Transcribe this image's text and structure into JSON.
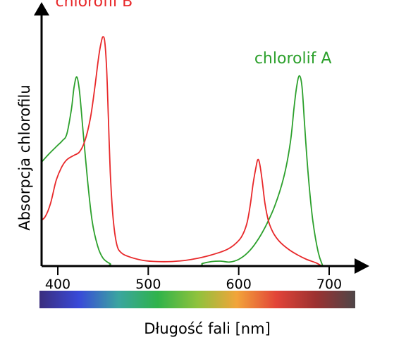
{
  "chart_data": {
    "type": "line",
    "xlabel": "Długość fali [nm]",
    "ylabel": "Absorpcja chlorofilu",
    "x_ticks": [
      400,
      500,
      600,
      700
    ],
    "xlim": [
      380,
      720
    ],
    "ylim": [
      0,
      1
    ],
    "grid": false,
    "spectrum_bar_colors": [
      "#3a2e7e",
      "#3949d8",
      "#3aa5a0",
      "#2fb34a",
      "#8fc23c",
      "#f2a43a",
      "#e24438",
      "#9c3131",
      "#4e4648"
    ],
    "series": [
      {
        "name": "chlorolif A",
        "color": "#2ca02c",
        "label_at": [
          660,
          0.905
        ],
        "points": [
          [
            380,
            0.455
          ],
          [
            390,
            0.5
          ],
          [
            400,
            0.54
          ],
          [
            405,
            0.56
          ],
          [
            410,
            0.59
          ],
          [
            415,
            0.7
          ],
          [
            418,
            0.8
          ],
          [
            421,
            0.845
          ],
          [
            424,
            0.78
          ],
          [
            428,
            0.6
          ],
          [
            433,
            0.38
          ],
          [
            438,
            0.2
          ],
          [
            444,
            0.09
          ],
          [
            450,
            0.035
          ],
          [
            458,
            0.01
          ],
          [
            465,
            0.0
          ],
          [
            550,
            0.0
          ],
          [
            560,
            0.012
          ],
          [
            570,
            0.02
          ],
          [
            580,
            0.022
          ],
          [
            590,
            0.018
          ],
          [
            600,
            0.03
          ],
          [
            610,
            0.06
          ],
          [
            620,
            0.11
          ],
          [
            630,
            0.18
          ],
          [
            640,
            0.27
          ],
          [
            650,
            0.4
          ],
          [
            657,
            0.55
          ],
          [
            661,
            0.7
          ],
          [
            664,
            0.8
          ],
          [
            667,
            0.85
          ],
          [
            670,
            0.8
          ],
          [
            673,
            0.62
          ],
          [
            677,
            0.4
          ],
          [
            682,
            0.2
          ],
          [
            688,
            0.06
          ],
          [
            693,
            0.0
          ]
        ]
      },
      {
        "name": "chlorofil B",
        "color": "#e8282a",
        "label_at": [
          440,
          1.16
        ],
        "points": [
          [
            380,
            0.2
          ],
          [
            386,
            0.22
          ],
          [
            392,
            0.28
          ],
          [
            398,
            0.38
          ],
          [
            404,
            0.44
          ],
          [
            410,
            0.475
          ],
          [
            418,
            0.495
          ],
          [
            424,
            0.51
          ],
          [
            430,
            0.56
          ],
          [
            436,
            0.66
          ],
          [
            441,
            0.8
          ],
          [
            445,
            0.93
          ],
          [
            448,
            1.0
          ],
          [
            450,
            1.025
          ],
          [
            452,
            1.0
          ],
          [
            454,
            0.88
          ],
          [
            456,
            0.65
          ],
          [
            458,
            0.42
          ],
          [
            461,
            0.22
          ],
          [
            465,
            0.1
          ],
          [
            470,
            0.06
          ],
          [
            480,
            0.04
          ],
          [
            495,
            0.025
          ],
          [
            510,
            0.02
          ],
          [
            525,
            0.02
          ],
          [
            540,
            0.025
          ],
          [
            555,
            0.035
          ],
          [
            570,
            0.05
          ],
          [
            585,
            0.07
          ],
          [
            595,
            0.095
          ],
          [
            603,
            0.13
          ],
          [
            609,
            0.19
          ],
          [
            613,
            0.28
          ],
          [
            616,
            0.37
          ],
          [
            619,
            0.44
          ],
          [
            621,
            0.475
          ],
          [
            623,
            0.46
          ],
          [
            626,
            0.38
          ],
          [
            629,
            0.28
          ],
          [
            633,
            0.2
          ],
          [
            638,
            0.15
          ],
          [
            645,
            0.11
          ],
          [
            655,
            0.075
          ],
          [
            665,
            0.05
          ],
          [
            675,
            0.03
          ],
          [
            685,
            0.015
          ],
          [
            692,
            0.0
          ]
        ]
      }
    ]
  }
}
